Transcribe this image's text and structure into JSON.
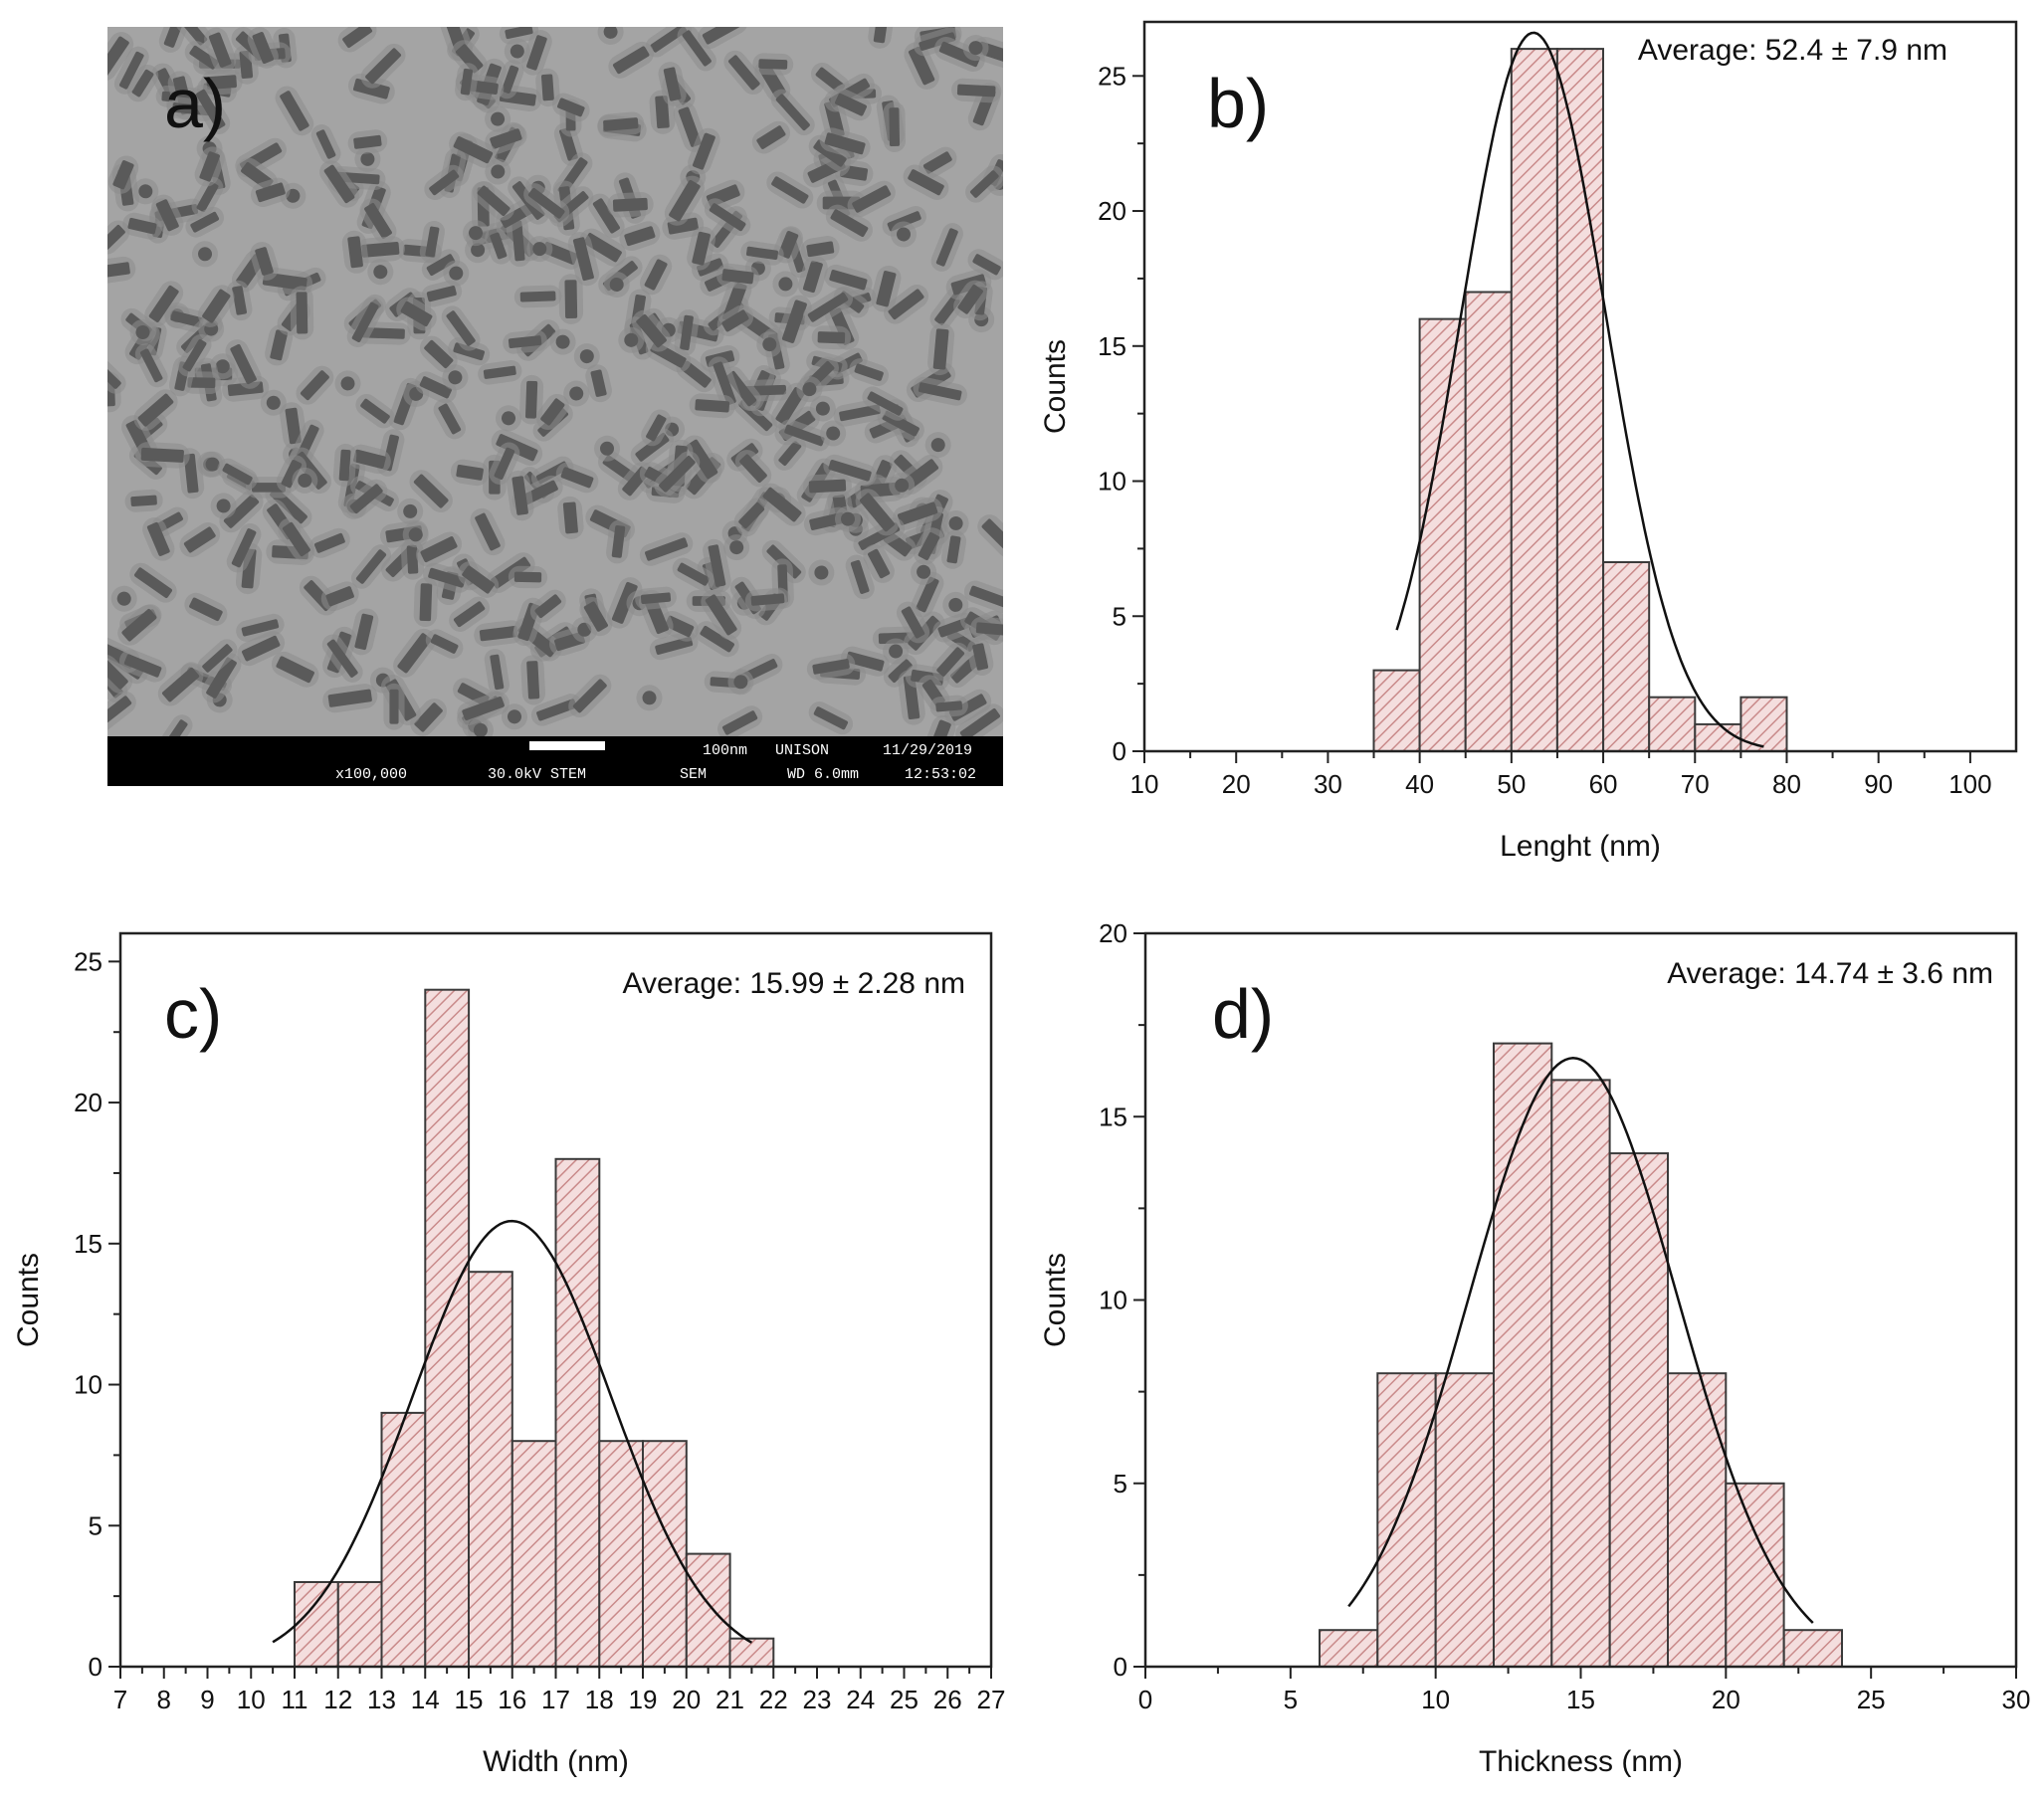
{
  "figure": {
    "panel_a": {
      "label": "a)",
      "scale_bar_text": "100nm",
      "info": {
        "magnification": "x100,000",
        "voltage_mode": "30.0kV STEM",
        "detector": "SEM",
        "working_distance": "WD 6.0mm",
        "facility": "UNISON",
        "date": "11/29/2019",
        "time": "12:53:02"
      }
    }
  },
  "chart_data": [
    {
      "panel": "b",
      "label": "b)",
      "type": "bar",
      "annotation": "Average: 52.4 ± 7.9 nm",
      "xlabel": "Lenght (nm)",
      "ylabel": "Counts",
      "xlim": [
        10,
        105
      ],
      "ylim": [
        0,
        27
      ],
      "xticks": [
        10,
        20,
        30,
        40,
        50,
        60,
        70,
        80,
        90,
        100
      ],
      "yticks": [
        0,
        5,
        10,
        15,
        20,
        25
      ],
      "bin_width": 5,
      "bins": [
        {
          "start": 35,
          "count": 3
        },
        {
          "start": 40,
          "count": 16
        },
        {
          "start": 45,
          "count": 17
        },
        {
          "start": 50,
          "count": 26
        },
        {
          "start": 55,
          "count": 26
        },
        {
          "start": 60,
          "count": 7
        },
        {
          "start": 65,
          "count": 2
        },
        {
          "start": 70,
          "count": 1
        },
        {
          "start": 75,
          "count": 2
        }
      ],
      "fit": {
        "mean": 52.4,
        "sd": 7.9,
        "amplitude": 26.6,
        "range": [
          37.5,
          77.5
        ]
      }
    },
    {
      "panel": "c",
      "label": "c)",
      "type": "bar",
      "annotation": "Average: 15.99 ± 2.28 nm",
      "xlabel": "Width (nm)",
      "ylabel": "Counts",
      "xlim": [
        7,
        27
      ],
      "ylim": [
        0,
        26
      ],
      "xticks": [
        7,
        8,
        9,
        10,
        11,
        12,
        13,
        14,
        15,
        16,
        17,
        18,
        19,
        20,
        21,
        22,
        23,
        24,
        25,
        26,
        27
      ],
      "yticks": [
        0,
        5,
        10,
        15,
        20,
        25
      ],
      "bin_width": 1,
      "bins": [
        {
          "start": 11,
          "count": 3
        },
        {
          "start": 12,
          "count": 3
        },
        {
          "start": 13,
          "count": 9
        },
        {
          "start": 14,
          "count": 24
        },
        {
          "start": 15,
          "count": 14
        },
        {
          "start": 16,
          "count": 8
        },
        {
          "start": 17,
          "count": 18
        },
        {
          "start": 18,
          "count": 8
        },
        {
          "start": 19,
          "count": 8
        },
        {
          "start": 20,
          "count": 4
        },
        {
          "start": 21,
          "count": 1
        }
      ],
      "fit": {
        "mean": 15.99,
        "sd": 2.28,
        "amplitude": 15.8,
        "range": [
          10.5,
          21.5
        ]
      }
    },
    {
      "panel": "d",
      "label": "d)",
      "type": "bar",
      "annotation": "Average: 14.74 ± 3.6 nm",
      "xlabel": "Thickness (nm)",
      "ylabel": "Counts",
      "xlim": [
        0,
        30
      ],
      "ylim": [
        0,
        20
      ],
      "xticks": [
        0,
        5,
        10,
        15,
        20,
        25,
        30
      ],
      "yticks": [
        0,
        5,
        10,
        15,
        20
      ],
      "bin_width": 2,
      "bins": [
        {
          "start": 6,
          "count": 1
        },
        {
          "start": 8,
          "count": 8
        },
        {
          "start": 10,
          "count": 8
        },
        {
          "start": 12,
          "count": 17
        },
        {
          "start": 14,
          "count": 16
        },
        {
          "start": 16,
          "count": 14
        },
        {
          "start": 18,
          "count": 8
        },
        {
          "start": 20,
          "count": 5
        },
        {
          "start": 22,
          "count": 1
        }
      ],
      "fit": {
        "mean": 14.74,
        "sd": 3.6,
        "amplitude": 16.6,
        "range": [
          7,
          23
        ]
      }
    }
  ]
}
